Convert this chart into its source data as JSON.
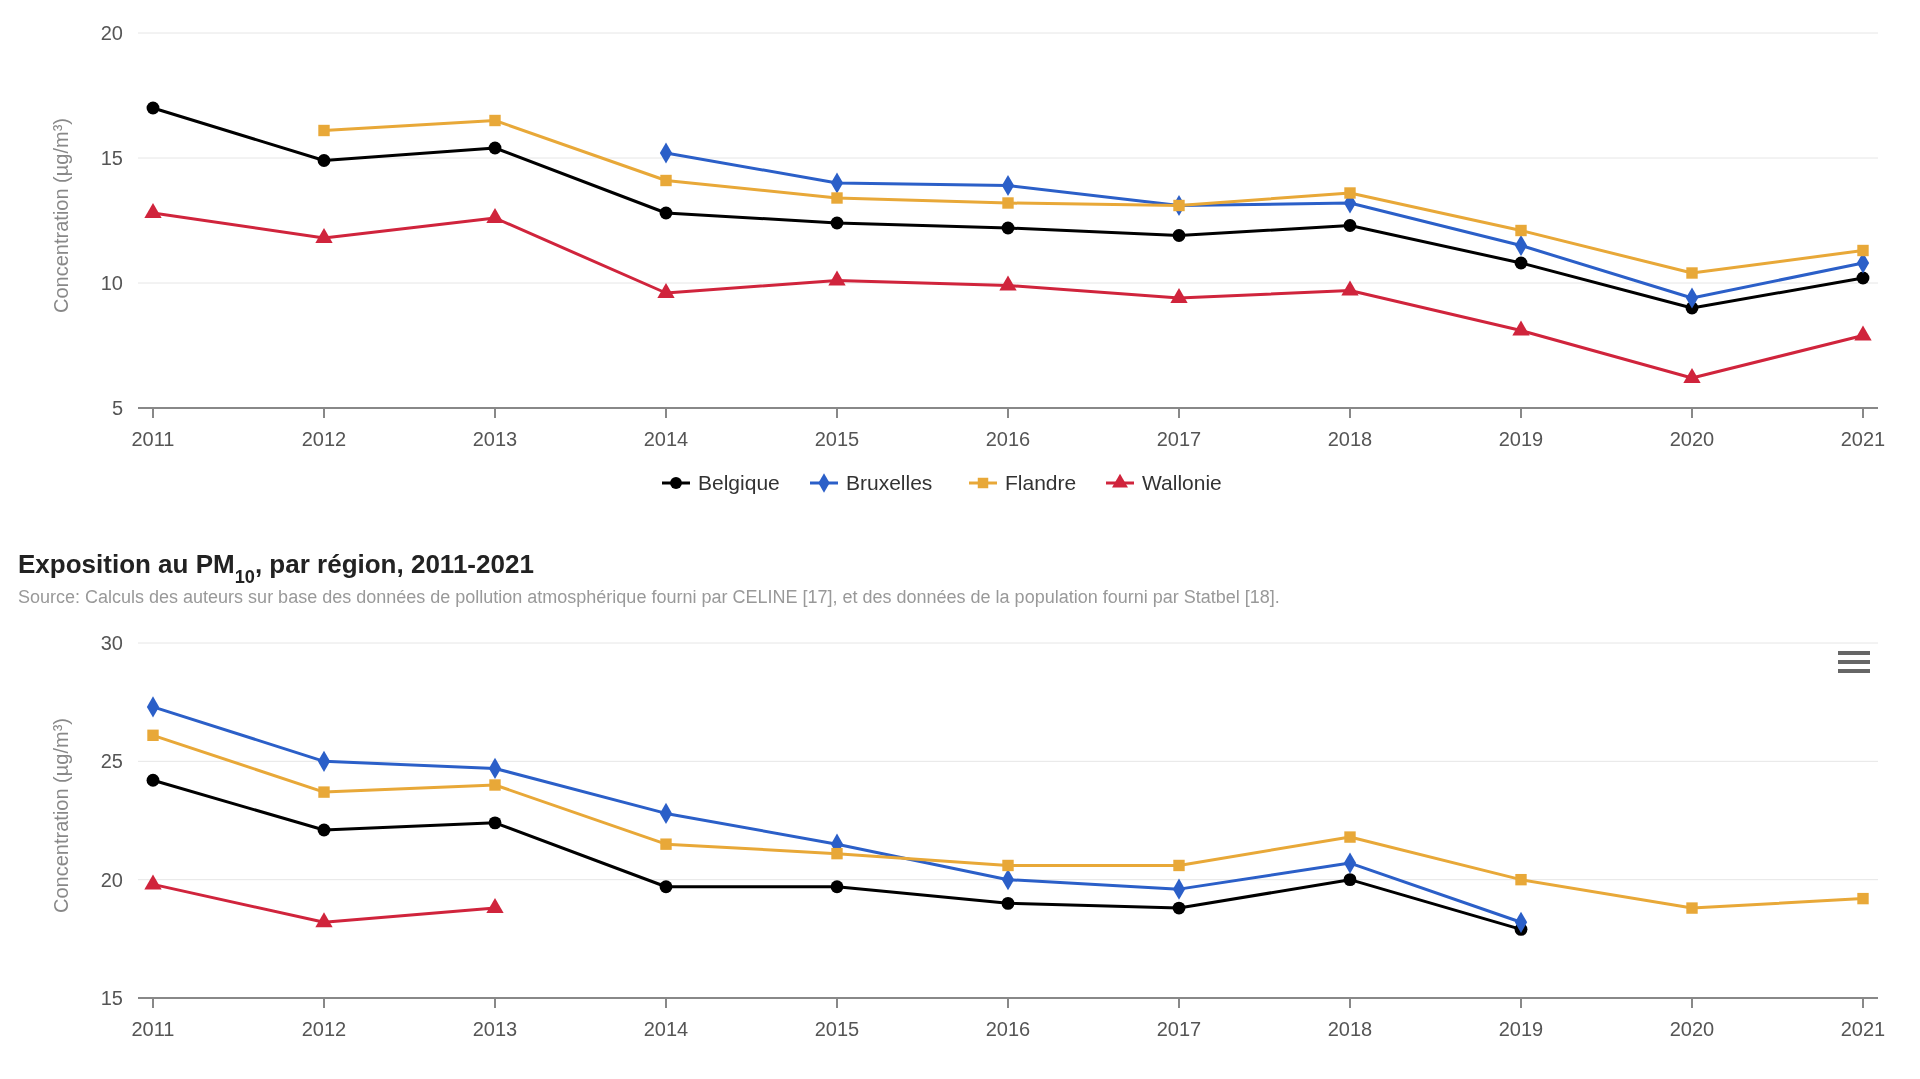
{
  "chart_data": [
    {
      "type": "line",
      "ylabel": "Concentration (µg/m³)",
      "categories": [
        "2011",
        "2012",
        "2013",
        "2014",
        "2015",
        "2016",
        "2017",
        "2018",
        "2019",
        "2020",
        "2021"
      ],
      "series": [
        {
          "name": "Belgique",
          "color": "#000000",
          "marker": "circle",
          "values": [
            17.0,
            14.9,
            15.4,
            12.8,
            12.4,
            12.2,
            11.9,
            12.3,
            10.8,
            9.0,
            10.2
          ]
        },
        {
          "name": "Bruxelles",
          "color": "#2b5fc8",
          "marker": "diamond",
          "values": [
            null,
            null,
            null,
            15.2,
            14.0,
            13.9,
            13.1,
            13.2,
            11.5,
            9.4,
            10.8
          ]
        },
        {
          "name": "Flandre",
          "color": "#e8a838",
          "marker": "square",
          "values": [
            null,
            16.1,
            16.5,
            14.1,
            13.4,
            13.2,
            13.1,
            13.6,
            12.1,
            10.4,
            11.3
          ]
        },
        {
          "name": "Wallonie",
          "color": "#d0243c",
          "marker": "triangle",
          "values": [
            12.8,
            11.8,
            12.6,
            9.6,
            10.1,
            9.9,
            9.4,
            9.7,
            8.1,
            6.2,
            7.9
          ]
        }
      ],
      "ylim": [
        5,
        20
      ],
      "yticks": [
        5,
        10,
        15,
        20
      ],
      "grid": "y",
      "legend": "bottom"
    },
    {
      "type": "line",
      "title": "Exposition au PM$_{10}$, par région, 2011-2021",
      "subtitle": "Source: Calculs des auteurs sur base des données de pollution atmosphérique fourni par CELINE [17], et des données de la population fourni par Statbel [18].",
      "ylabel": "Concentration (µg/m³)",
      "categories": [
        "2011",
        "2012",
        "2013",
        "2014",
        "2015",
        "2016",
        "2017",
        "2018",
        "2019",
        "2020",
        "2021"
      ],
      "series": [
        {
          "color": "#000000",
          "marker": "circle",
          "values": [
            24.2,
            22.1,
            22.4,
            19.7,
            19.7,
            19.0,
            18.8,
            20.0,
            17.9,
            null,
            null
          ]
        },
        {
          "color": "#2b5fc8",
          "marker": "diamond",
          "values": [
            27.3,
            25.0,
            24.7,
            22.8,
            21.5,
            20.0,
            19.6,
            20.7,
            18.2,
            null,
            null
          ]
        },
        {
          "color": "#e8a838",
          "marker": "square",
          "values": [
            26.1,
            23.7,
            24.0,
            21.5,
            21.1,
            20.6,
            20.6,
            21.8,
            20.0,
            18.8,
            19.2
          ]
        },
        {
          "color": "#d0243c",
          "marker": "triangle",
          "values": [
            19.8,
            18.2,
            18.8,
            null,
            null,
            null,
            null,
            null,
            null,
            null,
            null
          ]
        }
      ],
      "ylim": [
        15,
        30
      ],
      "yticks": [
        15,
        20,
        25,
        30
      ],
      "grid": "y",
      "legend": false
    }
  ]
}
